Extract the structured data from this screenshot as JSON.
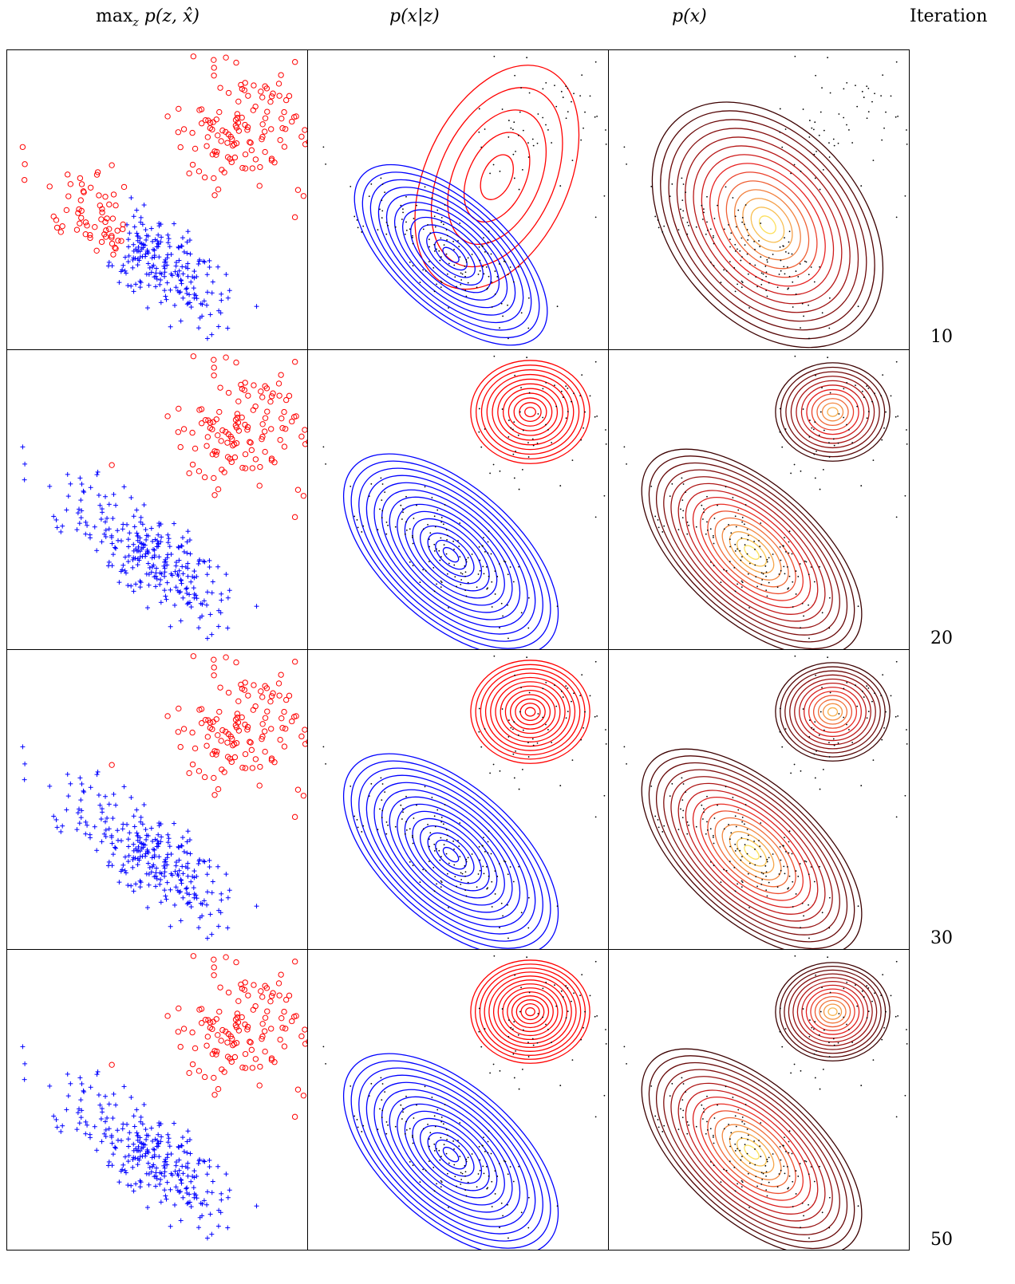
{
  "headers": {
    "col1": {
      "fn": "max",
      "sub": "z",
      "expr": "p(z, x̂)"
    },
    "col2": {
      "expr": "p(x|z)"
    },
    "col3": {
      "expr": "p(x)"
    },
    "col4": "Iteration"
  },
  "rows": [
    {
      "iteration": "10"
    },
    {
      "iteration": "20"
    },
    {
      "iteration": "30"
    },
    {
      "iteration": "50"
    }
  ],
  "colors": {
    "cluster_a": "#ff0000",
    "cluster_b": "#0000ff",
    "data_points": "#000000",
    "density_low": "#3b0000",
    "density_high": "#ffff66"
  }
}
